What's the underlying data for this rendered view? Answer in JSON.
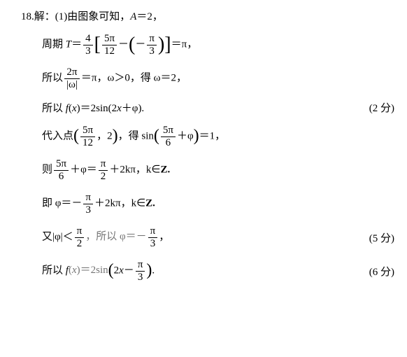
{
  "problem_number": "18.",
  "lines": {
    "l1_prefix": "解：(1)由图象可知，",
    "l1_eq": "A＝2，",
    "l2_prefix": "周期 ",
    "l2_T": "T",
    "l2_eq1": "＝",
    "l2_frac1_num": "4",
    "l2_frac1_den": "3",
    "l2_frac2_num": "5π",
    "l2_frac2_den": "12",
    "l2_minus": "－",
    "l2_frac3_num": "π",
    "l2_frac3_den": "3",
    "l2_eq2": "＝π，",
    "l3_prefix": "所以",
    "l3_frac_num": "2π",
    "l3_frac_den": "|ω|",
    "l3_mid": "＝π，ω＞0，得 ω＝2，",
    "l4_prefix": "所以 ",
    "l4_fx": "f(x)＝2sin(2x＋φ).",
    "l4_score": "(2 分)",
    "l5_prefix": "代入点",
    "l5_frac1_num": "5π",
    "l5_frac1_den": "12",
    "l5_comma": "，2",
    "l5_mid": "，得 sin",
    "l5_frac2_num": "5π",
    "l5_frac2_den": "6",
    "l5_plus": "＋φ",
    "l5_eq": "＝1，",
    "l6_prefix": "则",
    "l6_frac1_num": "5π",
    "l6_frac1_den": "6",
    "l6_mid1": "＋φ＝",
    "l6_frac2_num": "π",
    "l6_frac2_den": "2",
    "l6_mid2": "＋2kπ，k∈",
    "l6_Z": "Z.",
    "l7_prefix": "即 φ＝－",
    "l7_frac_num": "π",
    "l7_frac_den": "3",
    "l7_suffix": "＋2kπ，k∈",
    "l7_Z": "Z.",
    "l8_prefix": "又|φ|＜",
    "l8_frac1_num": "π",
    "l8_frac1_den": "2",
    "l8_mid": "，所以 φ＝－",
    "l8_frac2_num": "π",
    "l8_frac2_den": "3",
    "l8_suffix": "，",
    "l8_score": "(5 分)",
    "l9_prefix": "所以 ",
    "l9_fx": "f(x)＝2sin",
    "l9_inner1": "2x－",
    "l9_frac_num": "π",
    "l9_frac_den": "3",
    "l9_suffix": ".",
    "l9_score": "(6 分)"
  }
}
